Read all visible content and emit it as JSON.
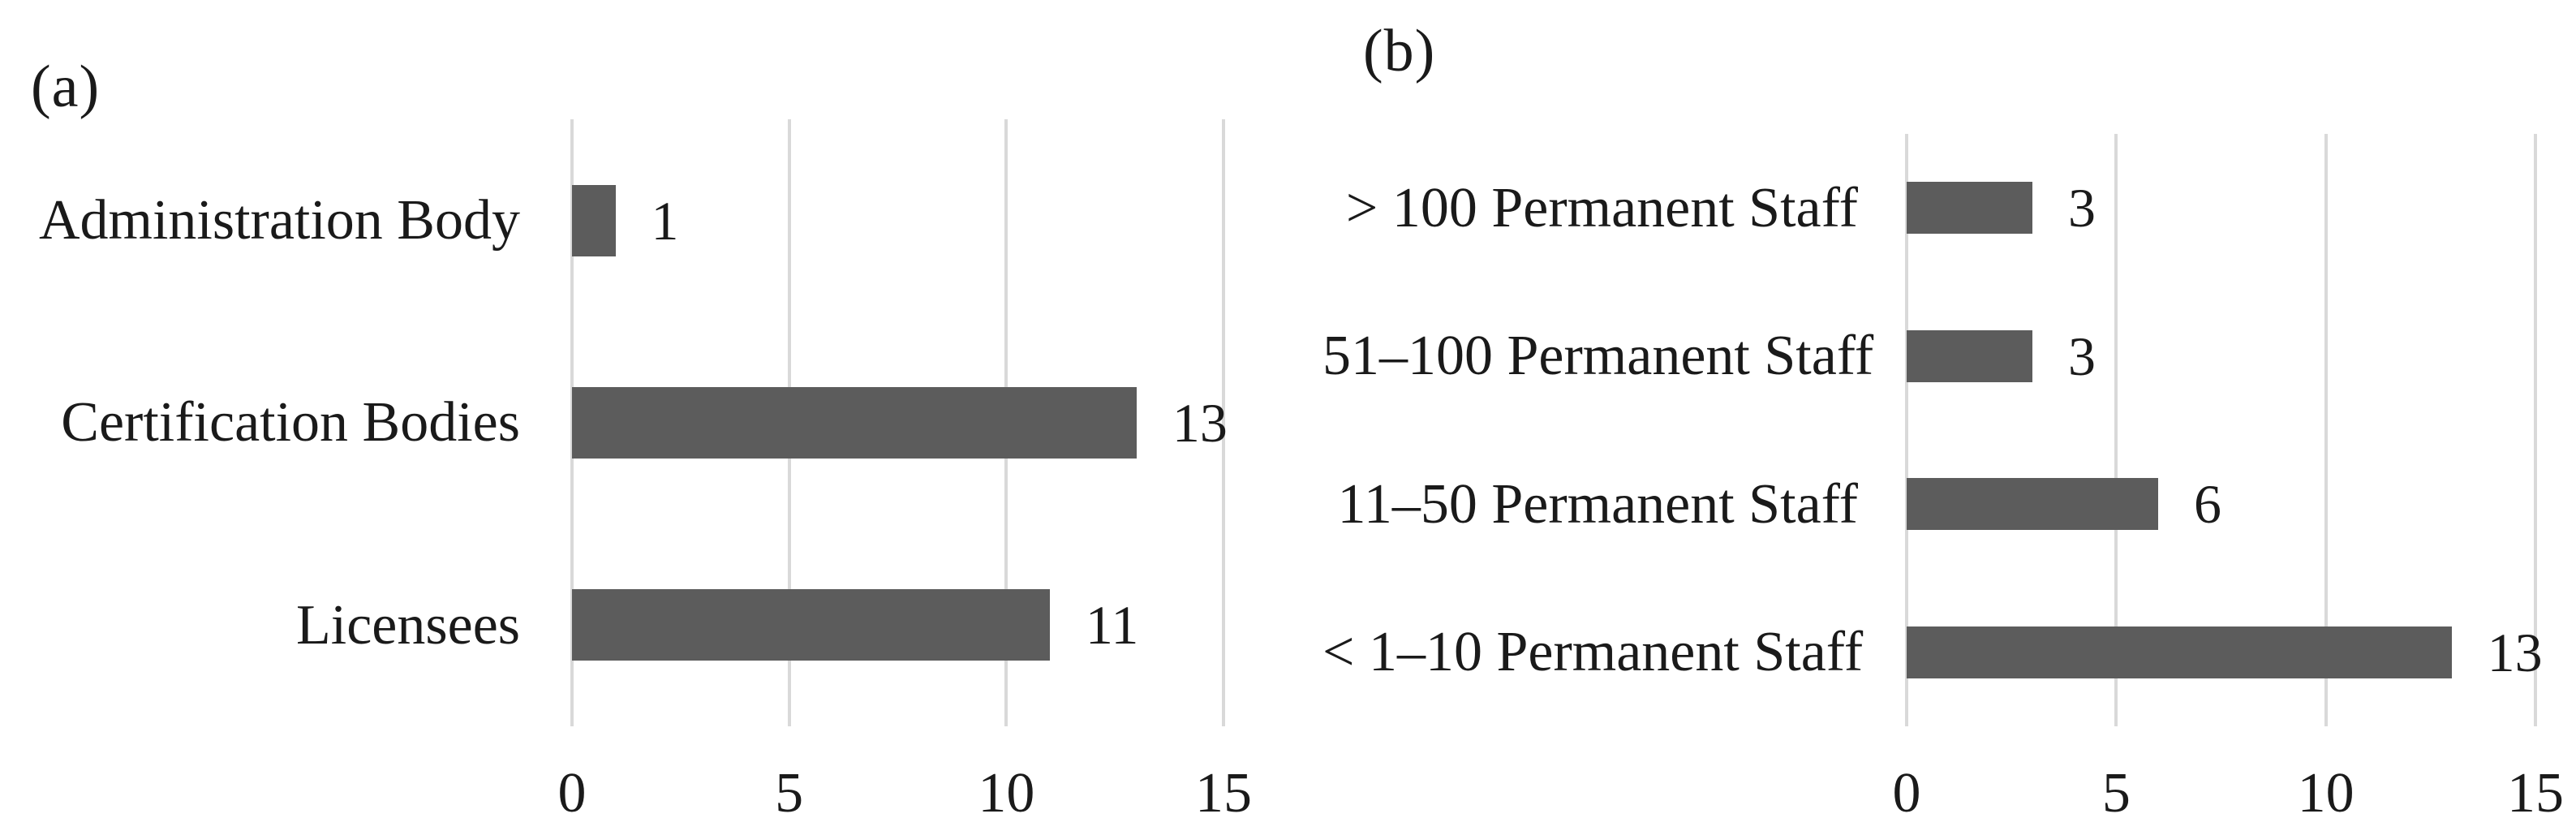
{
  "figure": {
    "background_color": "#ffffff",
    "bar_color": "#5c5c5c",
    "gridline_color": "#d9d9d9",
    "text_color": "#1a1a1a"
  },
  "chart_data": [
    {
      "type": "bar",
      "orientation": "horizontal",
      "panel_label": "(a)",
      "categories": [
        "Administration Body",
        "Certification Bodies",
        "Licensees"
      ],
      "values": [
        1,
        13,
        11
      ],
      "value_labels": [
        "1",
        "13",
        "11"
      ],
      "x_ticks": [
        "0",
        "5",
        "10",
        "15"
      ],
      "xlim": [
        0,
        15
      ],
      "grid": true,
      "legend": false,
      "title": "",
      "xlabel": "",
      "ylabel": ""
    },
    {
      "type": "bar",
      "orientation": "horizontal",
      "panel_label": "(b)",
      "categories": [
        "> 100 Permanent Staff",
        "51–100 Permanent Staff",
        "11–50 Permanent Staff",
        "< 1–10 Permanent Staff"
      ],
      "values": [
        3,
        3,
        6,
        13
      ],
      "value_labels": [
        "3",
        "3",
        "6",
        "13"
      ],
      "x_ticks": [
        "0",
        "5",
        "10",
        "15"
      ],
      "xlim": [
        0,
        15
      ],
      "grid": true,
      "legend": false,
      "title": "",
      "xlabel": "",
      "ylabel": ""
    }
  ]
}
